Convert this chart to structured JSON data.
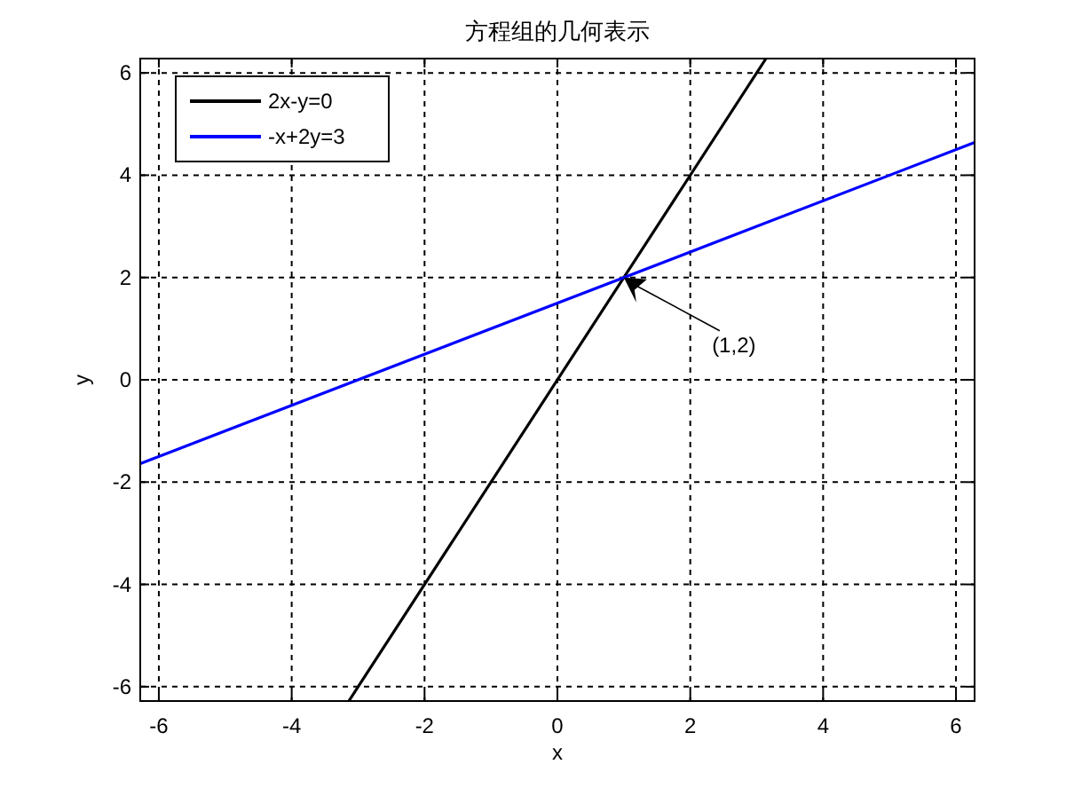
{
  "chart_data": {
    "type": "line",
    "title": "方程组的几何表示",
    "xlabel": "x",
    "ylabel": "y",
    "series": [
      {
        "name": "2x-y=0",
        "color": "#000000",
        "x": [
          -3.14,
          3.14
        ],
        "values": [
          -6.28,
          6.28
        ]
      },
      {
        "name": "-x+2y=3",
        "color": "#0000ff",
        "x": [
          -6.28,
          6.28
        ],
        "values": [
          -1.64,
          4.64
        ]
      }
    ],
    "xlim": [
      -6.28,
      6.28
    ],
    "ylim": [
      -6.28,
      6.28
    ],
    "xticks": [
      -6,
      -4,
      -2,
      0,
      2,
      4,
      6
    ],
    "yticks": [
      -6,
      -4,
      -2,
      0,
      2,
      4,
      6
    ],
    "grid": true,
    "legend": "top left",
    "line_style": "solid",
    "annotations": [
      {
        "text": "(1,2)",
        "x": 1,
        "y": 2
      }
    ]
  }
}
